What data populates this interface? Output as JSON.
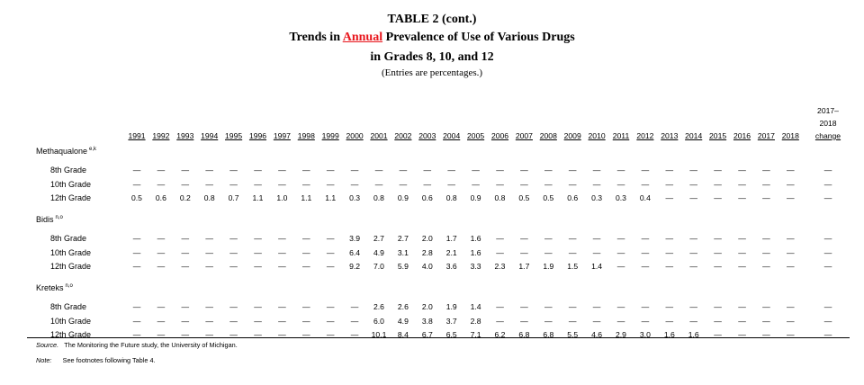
{
  "title": {
    "line1": "TABLE 2 (cont.)",
    "line2_before": "Trends in ",
    "line2_highlight": "Annual",
    "line2_after": " Prevalence of Use of Various Drugs",
    "line3": "in Grades 8, 10, and 12",
    "line4": "(Entries are percentages.)"
  },
  "colors": {
    "highlight": "#e8141b",
    "text": "#000000"
  },
  "header": {
    "years": [
      "1991",
      "1992",
      "1993",
      "1994",
      "1995",
      "1996",
      "1997",
      "1998",
      "1999",
      "2000",
      "2001",
      "2002",
      "2003",
      "2004",
      "2005",
      "2006",
      "2007",
      "2008",
      "2009",
      "2010",
      "2011",
      "2012",
      "2013",
      "2014",
      "2015",
      "2016",
      "2017",
      "2018"
    ],
    "change_line1": "2017–",
    "change_line2": "2018",
    "change_line3": "change"
  },
  "sections": [
    {
      "name": "Methaqualone",
      "note": "e,k",
      "rows": [
        {
          "label": "8th Grade",
          "values": [
            "—",
            "—",
            "—",
            "—",
            "—",
            "—",
            "—",
            "—",
            "—",
            "—",
            "—",
            "—",
            "—",
            "—",
            "—",
            "—",
            "—",
            "—",
            "—",
            "—",
            "—",
            "—",
            "—",
            "—",
            "—",
            "—",
            "—",
            "—"
          ],
          "change": "—"
        },
        {
          "label": "10th Grade",
          "values": [
            "—",
            "—",
            "—",
            "—",
            "—",
            "—",
            "—",
            "—",
            "—",
            "—",
            "—",
            "—",
            "—",
            "—",
            "—",
            "—",
            "—",
            "—",
            "—",
            "—",
            "—",
            "—",
            "—",
            "—",
            "—",
            "—",
            "—",
            "—"
          ],
          "change": "—"
        },
        {
          "label": "12th Grade",
          "values": [
            "0.5",
            "0.6",
            "0.2",
            "0.8",
            "0.7",
            "1.1",
            "1.0",
            "1.1",
            "1.1",
            "0.3",
            "0.8",
            "0.9",
            "0.6",
            "0.8",
            "0.9",
            "0.8",
            "0.5",
            "0.5",
            "0.6",
            "0.3",
            "0.3",
            "0.4",
            "—",
            "—",
            "—",
            "—",
            "—",
            "—"
          ],
          "change": "—"
        }
      ]
    },
    {
      "name": "Bidis",
      "note": "n,o",
      "rows": [
        {
          "label": "8th Grade",
          "values": [
            "—",
            "—",
            "—",
            "—",
            "—",
            "—",
            "—",
            "—",
            "—",
            "3.9",
            "2.7",
            "2.7",
            "2.0",
            "1.7",
            "1.6",
            "—",
            "—",
            "—",
            "—",
            "—",
            "—",
            "—",
            "—",
            "—",
            "—",
            "—",
            "—",
            "—"
          ],
          "change": "—"
        },
        {
          "label": "10th Grade",
          "values": [
            "—",
            "—",
            "—",
            "—",
            "—",
            "—",
            "—",
            "—",
            "—",
            "6.4",
            "4.9",
            "3.1",
            "2.8",
            "2.1",
            "1.6",
            "—",
            "—",
            "—",
            "—",
            "—",
            "—",
            "—",
            "—",
            "—",
            "—",
            "—",
            "—",
            "—"
          ],
          "change": "—"
        },
        {
          "label": "12th Grade",
          "values": [
            "—",
            "—",
            "—",
            "—",
            "—",
            "—",
            "—",
            "—",
            "—",
            "9.2",
            "7.0",
            "5.9",
            "4.0",
            "3.6",
            "3.3",
            "2.3",
            "1.7",
            "1.9",
            "1.5",
            "1.4",
            "—",
            "—",
            "—",
            "—",
            "—",
            "—",
            "—",
            "—"
          ],
          "change": "—"
        }
      ]
    },
    {
      "name": "Kreteks",
      "note": "n,o",
      "rows": [
        {
          "label": "8th Grade",
          "values": [
            "—",
            "—",
            "—",
            "—",
            "—",
            "—",
            "—",
            "—",
            "—",
            "—",
            "2.6",
            "2.6",
            "2.0",
            "1.9",
            "1.4",
            "—",
            "—",
            "—",
            "—",
            "—",
            "—",
            "—",
            "—",
            "—",
            "—",
            "—",
            "—",
            "—"
          ],
          "change": "—"
        },
        {
          "label": "10th Grade",
          "values": [
            "—",
            "—",
            "—",
            "—",
            "—",
            "—",
            "—",
            "—",
            "—",
            "—",
            "6.0",
            "4.9",
            "3.8",
            "3.7",
            "2.8",
            "—",
            "—",
            "—",
            "—",
            "—",
            "—",
            "—",
            "—",
            "—",
            "—",
            "—",
            "—",
            "—"
          ],
          "change": "—"
        },
        {
          "label": "12th Grade",
          "values": [
            "—",
            "—",
            "—",
            "—",
            "—",
            "—",
            "—",
            "—",
            "—",
            "—",
            "10.1",
            "8.4",
            "6.7",
            "6.5",
            "7.1",
            "6.2",
            "6.8",
            "6.8",
            "5.5",
            "4.6",
            "2.9",
            "3.0",
            "1.6",
            "1.6",
            "—",
            "—",
            "—",
            "—"
          ],
          "change": "—"
        }
      ]
    }
  ],
  "footnotes": {
    "source_label": "Source.",
    "source_text": "The Monitoring the Future study, the University of Michigan.",
    "note_label": "Note:",
    "note_text": "See footnotes following Table 4."
  }
}
